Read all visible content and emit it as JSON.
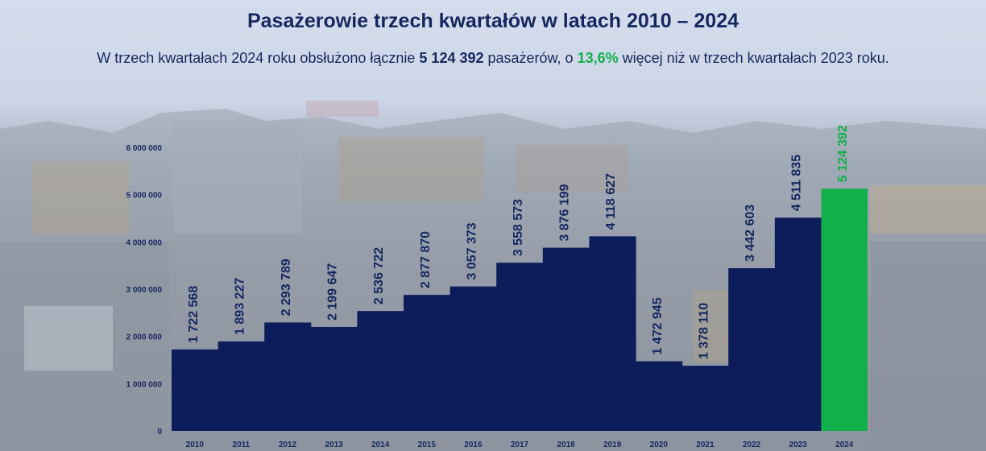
{
  "header": {
    "title": "Pasażerowie trzech kwartałów w latach 2010 – 2024",
    "subtitle_part1": "W trzech kwartałach 2024 roku obsłużono łącznie ",
    "subtitle_total": "5 124 392",
    "subtitle_part2": " pasażerów, o ",
    "subtitle_pct": "13,6%",
    "subtitle_part3": " więcej niż w trzech kwartałach 2023 roku."
  },
  "colors": {
    "bar": "#0d1d5c",
    "highlight": "#12b04a",
    "text": "#16275e"
  },
  "chart_data": {
    "type": "bar",
    "title": "Pasażerowie trzech kwartałów w latach 2010 – 2024",
    "categories": [
      "2010",
      "2011",
      "2012",
      "2013",
      "2014",
      "2015",
      "2016",
      "2017",
      "2018",
      "2019",
      "2020",
      "2021",
      "2022",
      "2023",
      "2024"
    ],
    "values": [
      1722568,
      1893227,
      2293789,
      2199647,
      2536722,
      2877870,
      3057373,
      3558573,
      3876199,
      4118627,
      1472945,
      1378110,
      3442603,
      4511835,
      5124392
    ],
    "value_labels": [
      "1 722 568",
      "1 893 227",
      "2 293 789",
      "2 199 647",
      "2 536 722",
      "2 877 870",
      "3 057 373",
      "3 558 573",
      "3 876 199",
      "4 118 627",
      "1 472 945",
      "1 378 110",
      "3 442 603",
      "4 511 835",
      "5 124 392"
    ],
    "yticks": [
      0,
      1000000,
      2000000,
      3000000,
      4000000,
      5000000,
      6000000
    ],
    "ytick_labels": [
      "0",
      "1 000 000",
      "2 000 000",
      "3 000 000",
      "4 000 000",
      "5 000 000",
      "6 000 000"
    ],
    "ylim": [
      0,
      6000000
    ],
    "highlight_category": "2024",
    "grid": false,
    "legend": "none"
  }
}
